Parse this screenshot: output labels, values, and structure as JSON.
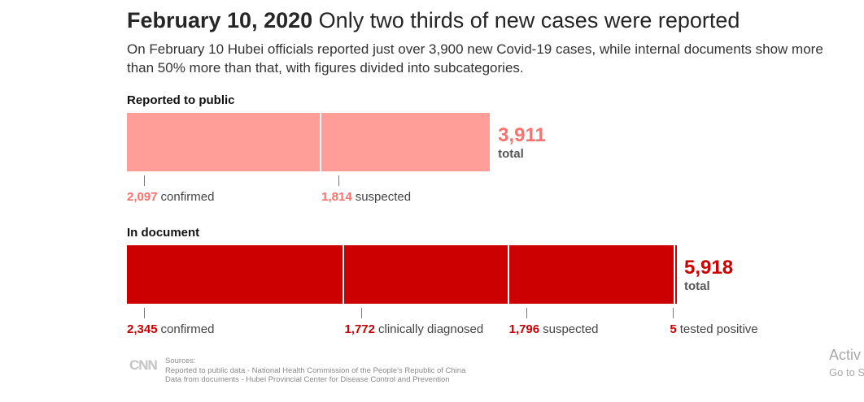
{
  "header": {
    "date": "February 10, 2020",
    "title": "Only two thirds of new cases were reported",
    "subtitle": "On February 10 Hubei officials reported just over 3,900 new Covid-19 cases, while internal documents show more than 50% more than that, with figures divided into subcategories."
  },
  "chart_data": {
    "type": "bar",
    "orientation": "horizontal-stacked",
    "series": [
      {
        "name": "Reported to public",
        "total": 3911,
        "total_display": "3,911",
        "total_label": "total",
        "segments": [
          {
            "value": 2097,
            "display": "2,097",
            "label": "confirmed"
          },
          {
            "value": 1814,
            "display": "1,814",
            "label": "suspected"
          }
        ],
        "color": "#ff9d99"
      },
      {
        "name": "In document",
        "total": 5918,
        "total_display": "5,918",
        "total_label": "total",
        "segments": [
          {
            "value": 2345,
            "display": "2,345",
            "label": "confirmed"
          },
          {
            "value": 1772,
            "display": "1,772",
            "label": "clinically diagnosed"
          },
          {
            "value": 1796,
            "display": "1,796",
            "label": "suspected"
          },
          {
            "value": 5,
            "display": "5",
            "label": "tested positive"
          }
        ],
        "color": "#cc0000"
      }
    ],
    "xlim": [
      0,
      5918
    ],
    "grid": false
  },
  "footer": {
    "logo": "CNN",
    "sources_title": "Sources:",
    "sources": [
      "Reported to public data - National Health Commission of the People's Republic of China",
      "Data from documents - Hubei Provincial Center for Disease Control and Prevention"
    ]
  },
  "watermark": {
    "line1": "Activ",
    "line2": "Go to S"
  }
}
